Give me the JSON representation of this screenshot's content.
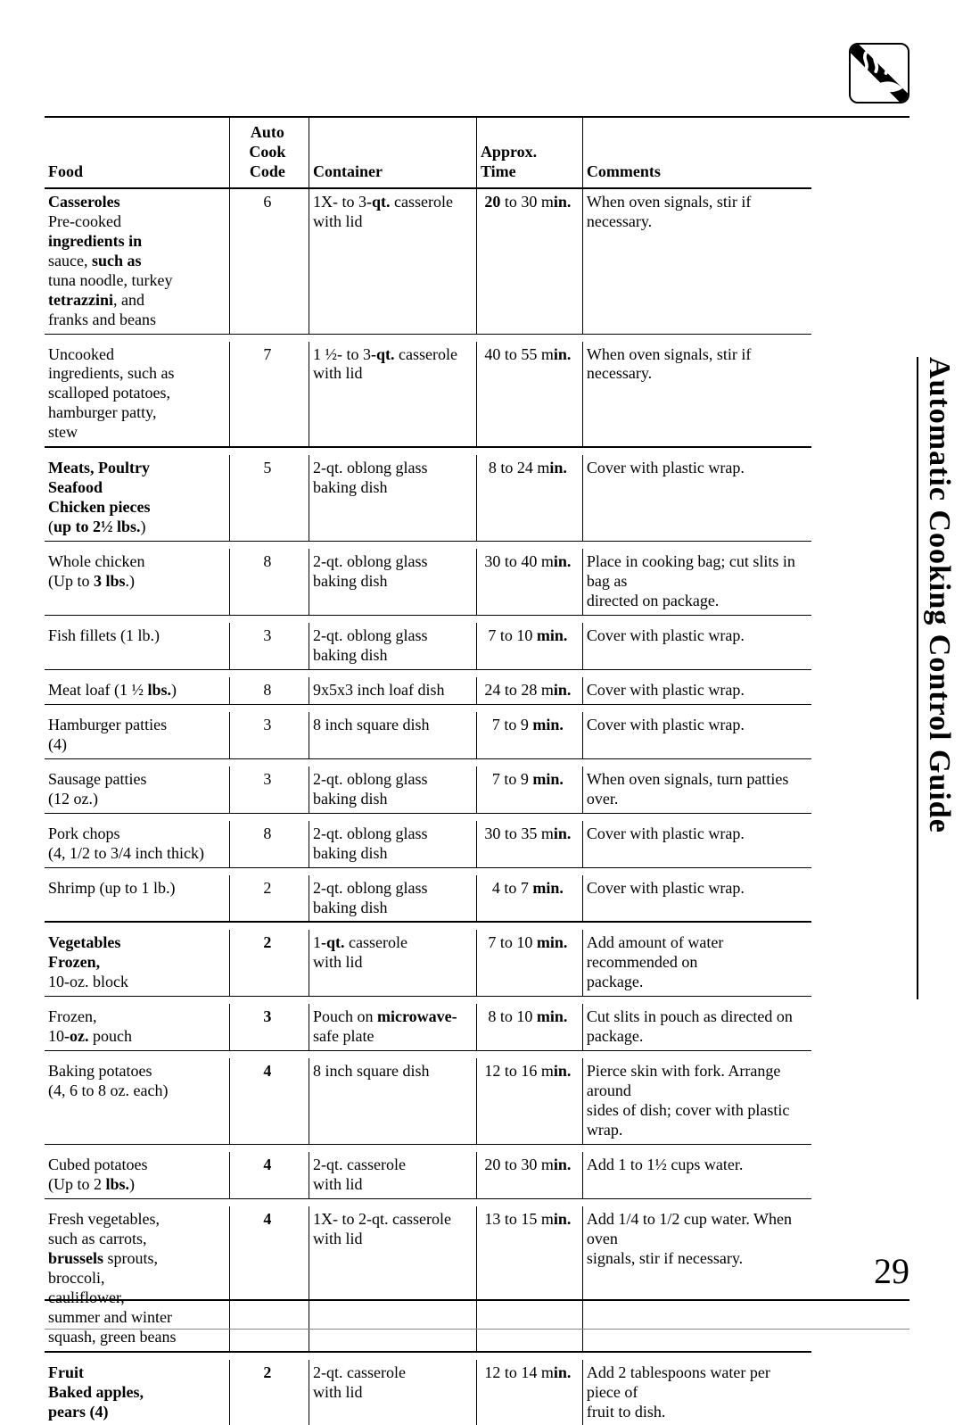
{
  "sideTitle": "Automatic Cooking Control Guide",
  "pageNumber": "29",
  "headers": {
    "food": "Food",
    "code": "Auto Cook\nCode",
    "container": "Container",
    "time": "Approx. Time",
    "comments": "Comments"
  },
  "sections": [
    {
      "category": "Casseroles",
      "rows": [
        {
          "food": "Pre-cooked\n<b>ingredients in</b>\nsauce, <b>such as</b>\ntuna noodle, turkey\n<b>tetrazzini</b>, and\nfranks and beans",
          "code": "6",
          "container": "1X- to 3<b>-qt.</b> casserole\nwith lid",
          "time": "<b>20</b> to 30 m<b>in.</b>",
          "comments": "When oven signals, stir if necessary."
        },
        {
          "food": "Uncooked\ningredients, such as\nscalloped potatoes,\nhamburger patty,\nstew",
          "code": "7",
          "container": "1 ½- to 3<b>-qt.</b> casserole\nwith lid",
          "time": "40 to 55 m<b>in.</b>",
          "comments": "When oven signals, stir if necessary.",
          "thinRuleBefore": true
        }
      ]
    },
    {
      "category": "Meats, Poultry\nSeafood",
      "rows": [
        {
          "food": "<b>Chicken pieces</b>\n(<b>up to 2½ lbs.</b>)",
          "code": "5",
          "container": "2-qt. oblong glass\nbaking dish",
          "time": "8 to 24 m<b>in.</b>",
          "comments": "Cover with plastic wrap.",
          "sameRowAsCat": true
        },
        {
          "food": "Whole chicken\n(Up to <b>3 lbs</b>.)",
          "code": "8",
          "container": "2-qt. oblong glass\nbaking dish",
          "time": "30 to 40 m<b>in.</b>",
          "comments": "Place in cooking bag; cut slits in bag as\ndirected on package.",
          "thinRuleBefore": true
        },
        {
          "food": "Fish fillets (1 lb.)",
          "code": "3",
          "container": "2-qt. oblong glass\nbaking dish",
          "time": "7 to 10 <b>min.</b>",
          "comments": "Cover with plastic wrap.",
          "thinRuleBefore": true
        },
        {
          "food": "Meat loaf (1 ½ <b>lbs.</b>)",
          "code": "8",
          "container": "9x5x3 inch loaf dish",
          "time": "24 to 28 m<b>in.</b>",
          "comments": "Cover with plastic wrap.",
          "thinRuleBefore": true
        },
        {
          "food": "Hamburger patties\n(4)",
          "code": "3",
          "container": "8 inch square dish",
          "time": "7 to 9 <b>min.</b>",
          "comments": "Cover with plastic wrap.",
          "thinRuleBefore": true
        },
        {
          "food": "Sausage patties\n(12 oz.)",
          "code": "3",
          "container": "2-qt. oblong glass\nbaking dish",
          "time": "7 to 9 <b>min.</b>",
          "comments": "When oven signals, turn patties over.",
          "thinRuleBefore": true
        },
        {
          "food": "Pork chops\n(4, 1/2 to 3/4 inch thick)",
          "code": "8",
          "container": "2-qt. oblong glass\nbaking dish",
          "time": "30 to 35 m<b>in.</b>",
          "comments": "Cover with plastic wrap.",
          "thinRuleBefore": true
        },
        {
          "food": "Shrimp (up to 1 lb.)",
          "code": "2",
          "container": "2-qt. oblong glass\nbaking dish",
          "time": "4 to 7 <b>min.</b>",
          "comments": "Cover with plastic wrap.",
          "thinRuleBefore": true
        }
      ]
    },
    {
      "category": "Vegetables",
      "rows": [
        {
          "food": "<b>Frozen,</b>\n10-oz. block",
          "code": "<b>2</b>",
          "container": "1<b>-qt.</b> casserole\nwith lid",
          "time": "7 to 10 <b>min.</b>",
          "comments": "Add amount of water recommended on\npackage.",
          "sameRowAsCat": true
        },
        {
          "food": "Frozen,\n10<b>-oz.</b> pouch",
          "code": "<b>3</b>",
          "container": "Pouch on <b>microwave-</b>\nsafe plate",
          "time": "8 to 10 <b>min.</b>",
          "comments": "Cut slits in pouch as directed on\npackage.",
          "thinRuleBefore": true
        },
        {
          "food": "Baking potatoes\n(4, 6 to 8 oz. each)",
          "code": "<b>4</b>",
          "container": "8 inch square dish",
          "time": "12 to 16 m<b>in.</b>",
          "comments": "Pierce skin with fork. Arrange around\nsides of dish; cover with plastic wrap.",
          "thinRuleBefore": true
        },
        {
          "food": "Cubed potatoes\n(Up to 2 <b>lbs.</b>)",
          "code": "<b>4</b>",
          "container": "2-qt. casserole\nwith lid",
          "time": "20 to 30 m<b>in.</b>",
          "comments": "Add 1 to 1½ cups water.",
          "thinRuleBefore": true
        },
        {
          "food": "Fresh vegetables,\nsuch as carrots,\n<b>brussels</b> sprouts,\nbroccoli,\ncauliflower,\nsummer and winter\nsquash, green beans",
          "code": "<b>4</b>",
          "container": "1X- to 2-qt. casserole\nwith lid",
          "time": "13 to 15 m<b>in.</b>",
          "comments": "Add 1/4 to 1/2 cup water. When oven\nsignals, stir if necessary.",
          "thinRuleBefore": true
        }
      ]
    },
    {
      "category": "Fruit",
      "rows": [
        {
          "food": "<b>Baked apples,\npears (4)</b>",
          "code": "<b>2</b>",
          "container": "2-qt. casserole\nwith lid",
          "time": "12 to 14 m<b>in.</b>",
          "comments": "Add 2 tablespoons water per piece of\nfruit to dish.",
          "sameRowAsCat": true
        }
      ]
    }
  ]
}
